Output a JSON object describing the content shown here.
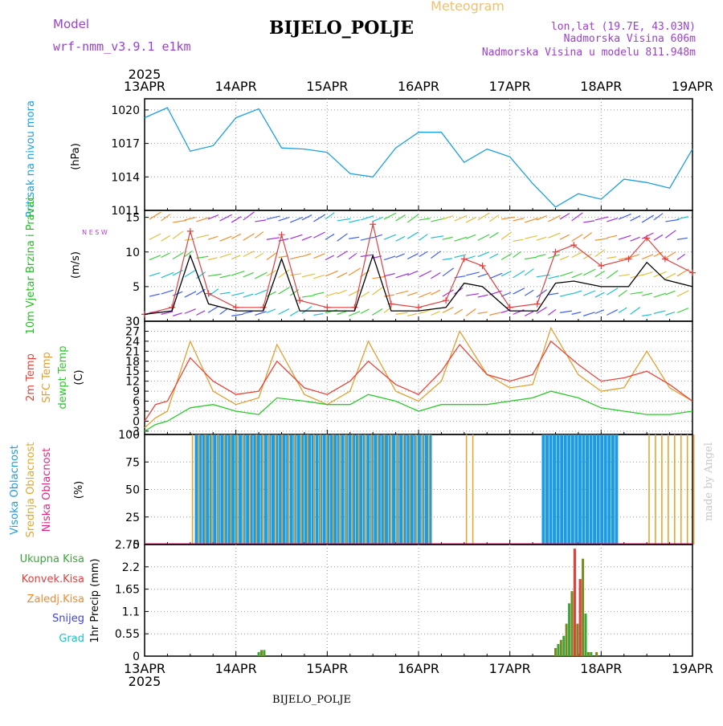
{
  "header": {
    "model_label": "Model",
    "model_name": "wrf-nmm_v3.9.1 e1km",
    "title": "BIJELO_POLJE",
    "meteogram_label": "Meteogram",
    "lonlat": "lon,lat (19.7E, 43.03N)",
    "elevation": "Nadmorska Visina 606m",
    "model_elevation": "Nadmorska Visina u modelu 811.948m",
    "watermark": "made by Angel",
    "footer_station": "BIJELO_POLJE"
  },
  "colors": {
    "pressure": "#1ca0e0",
    "temp2m": "#e8453a",
    "sfc_temp": "#e0a030",
    "dewpt": "#2cc82c",
    "high_cloud": "#1c9be0",
    "mid_cloud": "#e0a830",
    "low_cloud": "#e02880",
    "precip_total": "#3aa63a",
    "precip_conv": "#e04040",
    "precip_frozen": "#f08a30",
    "snow": "#4040e0",
    "graupel": "#20c0c0",
    "wind_speed": "#000000",
    "gust": "#e04040",
    "title_purple": "#9a40d0",
    "meteogram_orange": "#f0c070"
  },
  "time_axis": {
    "year": "2025",
    "labels": [
      "13APR",
      "14APR",
      "15APR",
      "16APR",
      "17APR",
      "18APR",
      "19APR"
    ]
  },
  "chart_data": [
    {
      "type": "line",
      "panel": "pressure",
      "ylabel_left": "Pritisak na nivou mora",
      "ylabel_units": "(hPa)",
      "ylim": [
        1011,
        1021
      ],
      "yticks": [
        1011,
        1014,
        1017,
        1020
      ],
      "grid": true,
      "series": [
        {
          "x": [
            0,
            0.25,
            0.5,
            0.75,
            1.0,
            1.25,
            1.5,
            1.75,
            2.0,
            2.25,
            2.5,
            2.75,
            3.0,
            3.25,
            3.5,
            3.75,
            4.0,
            4.25,
            4.5,
            4.75,
            5.0,
            5.25,
            5.5,
            5.75,
            6.0
          ],
          "values": [
            1019.3,
            1020.2,
            1016.3,
            1016.8,
            1019.3,
            1020.1,
            1016.6,
            1016.5,
            1016.2,
            1014.3,
            1014.0,
            1016.6,
            1018.0,
            1018.0,
            1015.3,
            1016.5,
            1015.8,
            1013.4,
            1011.3,
            1012.5,
            1012.0,
            1013.8,
            1013.5,
            1013.0,
            1016.5
          ]
        }
      ]
    },
    {
      "type": "line",
      "panel": "wind",
      "ylabel_left": "10m Vjetar Brzina i Pravac",
      "ylabel_units": "(m/s)",
      "compass": "N E S W",
      "ylim": [
        0,
        16
      ],
      "yticks": [
        0,
        5,
        10,
        15
      ],
      "grid": true,
      "series": [
        {
          "name": "speed",
          "x": [
            0,
            0.3,
            0.5,
            0.7,
            1.0,
            1.3,
            1.5,
            1.7,
            2.0,
            2.3,
            2.5,
            2.7,
            3.0,
            3.3,
            3.5,
            3.7,
            4.0,
            4.3,
            4.5,
            4.7,
            5.0,
            5.3,
            5.5,
            5.7,
            6.0
          ],
          "values": [
            1.0,
            1.5,
            9.5,
            2.5,
            1.5,
            1.5,
            9.0,
            1.5,
            1.5,
            1.5,
            9.5,
            1.5,
            1.5,
            2.0,
            5.5,
            5.0,
            1.5,
            1.5,
            5.5,
            5.8,
            5.0,
            5.0,
            8.5,
            6.0,
            5.0
          ]
        },
        {
          "name": "gust",
          "x": [
            0,
            0.3,
            0.5,
            0.7,
            1.0,
            1.3,
            1.5,
            1.7,
            2.0,
            2.3,
            2.5,
            2.7,
            3.0,
            3.3,
            3.5,
            3.7,
            4.0,
            4.3,
            4.5,
            4.7,
            5.0,
            5.3,
            5.5,
            5.7,
            6.0
          ],
          "values": [
            1.0,
            2.0,
            13.0,
            4.0,
            2.0,
            2.0,
            12.5,
            3.0,
            2.0,
            2.0,
            14.0,
            2.5,
            2.0,
            3.0,
            9.0,
            8.0,
            2.0,
            2.5,
            10.0,
            11.0,
            8.0,
            9.0,
            12.0,
            9.0,
            7.0
          ]
        }
      ]
    },
    {
      "type": "line",
      "panel": "temperature",
      "ylabel_left_lines": [
        "2m Temp",
        "SFC Temp",
        "dewpt Temp"
      ],
      "ylabel_units": "(C)",
      "ylim": [
        -4,
        30
      ],
      "yticks": [
        -3,
        0,
        3,
        6,
        9,
        12,
        15,
        18,
        21,
        24,
        27,
        30
      ],
      "grid": true,
      "series": [
        {
          "name": "2m Temp",
          "x": [
            0,
            0.12,
            0.25,
            0.5,
            0.75,
            1.0,
            1.25,
            1.45,
            1.75,
            2.0,
            2.25,
            2.45,
            2.75,
            3.0,
            3.25,
            3.45,
            3.75,
            4.0,
            4.25,
            4.45,
            4.75,
            5.0,
            5.25,
            5.5,
            5.75,
            6.0
          ],
          "values": [
            0,
            5,
            6,
            19,
            12,
            8,
            9,
            18,
            10,
            8,
            12,
            18,
            11,
            8,
            15,
            23,
            14,
            12,
            14,
            24,
            17,
            12,
            13,
            15,
            11,
            6
          ]
        },
        {
          "name": "SFC Temp",
          "x": [
            0,
            0.12,
            0.25,
            0.5,
            0.75,
            1.0,
            1.25,
            1.45,
            1.75,
            2.0,
            2.25,
            2.45,
            2.75,
            3.0,
            3.25,
            3.45,
            3.75,
            4.0,
            4.25,
            4.45,
            4.75,
            5.0,
            5.25,
            5.5,
            5.75,
            6.0
          ],
          "values": [
            -2,
            1,
            3,
            24,
            9,
            5,
            7,
            23,
            8,
            5,
            9,
            24,
            9,
            6,
            12,
            27,
            14,
            10,
            11,
            28,
            14,
            9,
            10,
            21,
            10,
            6
          ]
        },
        {
          "name": "dewpt Temp",
          "x": [
            0,
            0.12,
            0.25,
            0.5,
            0.75,
            1.0,
            1.25,
            1.45,
            1.75,
            2.0,
            2.25,
            2.45,
            2.75,
            3.0,
            3.25,
            3.45,
            3.75,
            4.0,
            4.25,
            4.45,
            4.75,
            5.0,
            5.25,
            5.5,
            5.75,
            6.0
          ],
          "values": [
            -3,
            -1,
            0,
            4,
            5,
            3,
            2,
            7,
            6,
            5,
            5,
            8,
            6,
            3,
            5,
            5,
            5,
            6,
            7,
            9,
            7,
            4,
            3,
            2,
            2,
            3
          ]
        }
      ]
    },
    {
      "type": "bar",
      "panel": "clouds",
      "ylabel_left_lines": [
        "Visoka Oblacnost",
        "Srednja Oblacnost",
        "Niska Oblacnost"
      ],
      "ylabel_units": "(%)",
      "ylim": [
        0,
        100
      ],
      "yticks": [
        0,
        25,
        50,
        75,
        100
      ],
      "grid": true,
      "series": [
        {
          "name": "Visoka Oblacnost",
          "periods": [
            [
              0.55,
              3.15
            ],
            [
              4.35,
              5.15
            ]
          ],
          "values": [
            100,
            100
          ]
        },
        {
          "name": "Srednja Oblacnost",
          "periods": [
            [
              0.5,
              3.1
            ],
            [
              3.5,
              3.6
            ],
            [
              5.5,
              6.0
            ]
          ],
          "values": [
            100,
            100,
            100
          ]
        }
      ]
    },
    {
      "type": "bar",
      "panel": "precip",
      "ylabel_left": "1hr Precip (mm)",
      "legend": [
        "Ukupna Kisa",
        "Konvek.Kisa",
        "Zaledj.Kisa",
        "Snijeg",
        "Grad"
      ],
      "ylim": [
        0,
        2.75
      ],
      "yticks": [
        0,
        0.55,
        1.1,
        1.65,
        2.2,
        2.75
      ],
      "grid": true,
      "series": [
        {
          "name": "Ukupna Kisa",
          "x": [
            1.25,
            1.28,
            1.31,
            4.5,
            4.53,
            4.56,
            4.59,
            4.62,
            4.65,
            4.68,
            4.71,
            4.74,
            4.77,
            4.8,
            4.83,
            4.86,
            4.89,
            4.95
          ],
          "values": [
            0.1,
            0.15,
            0.15,
            0.2,
            0.3,
            0.4,
            0.5,
            0.8,
            1.3,
            1.6,
            2.6,
            0.8,
            1.9,
            2.4,
            1.05,
            0.1,
            0.1,
            0.1
          ]
        },
        {
          "name": "Konvek.Kisa",
          "x": [
            4.71,
            4.77
          ],
          "values": [
            2.65,
            1.9
          ]
        }
      ]
    }
  ]
}
